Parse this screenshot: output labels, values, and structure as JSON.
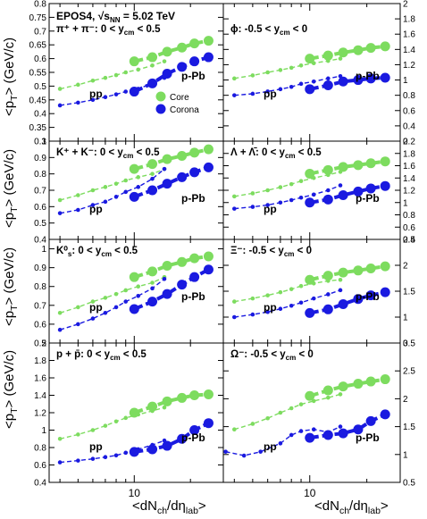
{
  "figure": {
    "ylabel": "<p_T> (GeV/c)",
    "xlabel": "<dN_ch/dη_lab>",
    "legend": {
      "core": "Core",
      "corona": "Corona"
    },
    "colors": {
      "core": "#7ddc5f",
      "corona": "#1a1ae0"
    },
    "header_line1": "EPOS4, √s_NN = 5.02 TeV"
  },
  "chart_data": [
    {
      "type": "line",
      "x_scale": "log",
      "xlim": [
        3.5,
        30
      ],
      "ylim": [
        0.3,
        0.8
      ],
      "yticks": [
        0.3,
        0.35,
        0.4,
        0.45,
        0.5,
        0.55,
        0.6,
        0.65,
        0.7,
        0.75,
        0.8
      ],
      "ytick_side": "left",
      "xtick_labels": [],
      "label": "π⁺ + π⁻: 0 < y_cm < 0.5",
      "label_pp": "pp",
      "label_ppb": "p-Pb",
      "series": [
        {
          "name": "Core",
          "system": "pp",
          "x": [
            4,
            5,
            6,
            7,
            8,
            9,
            10.5,
            12.5,
            14.5
          ],
          "y": [
            0.49,
            0.505,
            0.52,
            0.53,
            0.54,
            0.55,
            0.56,
            0.575,
            0.59
          ]
        },
        {
          "name": "Core",
          "system": "p-Pb",
          "x": [
            10,
            12.5,
            15,
            18,
            21,
            25
          ],
          "y": [
            0.59,
            0.605,
            0.625,
            0.64,
            0.655,
            0.665
          ]
        },
        {
          "name": "Corona",
          "system": "pp",
          "x": [
            4,
            5,
            6,
            7,
            8,
            9,
            10.5,
            12.5,
            14.5
          ],
          "y": [
            0.43,
            0.44,
            0.45,
            0.46,
            0.47,
            0.48,
            0.49,
            0.51,
            0.53
          ]
        },
        {
          "name": "Corona",
          "system": "p-Pb",
          "x": [
            10,
            12.5,
            15,
            18,
            21,
            25
          ],
          "y": [
            0.48,
            0.51,
            0.545,
            0.57,
            0.59,
            0.605
          ]
        }
      ]
    },
    {
      "type": "line",
      "x_scale": "log",
      "xlim": [
        3.5,
        30
      ],
      "ylim": [
        0.2,
        2.0
      ],
      "yticks": [
        0.2,
        0.4,
        0.6,
        0.8,
        1,
        1.2,
        1.4,
        1.6,
        1.8,
        2
      ],
      "ytick_side": "right",
      "xtick_labels": [],
      "label": "ϕ: -0.5 < y_cm < 0",
      "label_pp": "pp",
      "label_ppb": "p-Pb",
      "series": [
        {
          "name": "Core",
          "system": "pp",
          "x": [
            4,
            5,
            6,
            7,
            8,
            9,
            10.5,
            12.5,
            14.5
          ],
          "y": [
            1.02,
            1.06,
            1.1,
            1.13,
            1.16,
            1.19,
            1.22,
            1.25,
            1.28
          ]
        },
        {
          "name": "Core",
          "system": "p-Pb",
          "x": [
            10,
            12.5,
            15,
            18,
            21,
            25
          ],
          "y": [
            1.28,
            1.32,
            1.36,
            1.39,
            1.42,
            1.44
          ]
        },
        {
          "name": "Corona",
          "system": "pp",
          "x": [
            4,
            5,
            6,
            7,
            8,
            9,
            10.5,
            12.5,
            14.5
          ],
          "y": [
            0.8,
            0.82,
            0.85,
            0.88,
            0.91,
            0.95,
            0.98,
            1.02,
            1.05
          ]
        },
        {
          "name": "Corona",
          "system": "p-Pb",
          "x": [
            10,
            12.5,
            15,
            18,
            21,
            25
          ],
          "y": [
            0.88,
            0.93,
            0.98,
            1.0,
            1.02,
            1.03
          ]
        }
      ]
    },
    {
      "type": "line",
      "x_scale": "log",
      "xlim": [
        3.5,
        30
      ],
      "ylim": [
        0.4,
        1.0
      ],
      "yticks": [
        0.4,
        0.5,
        0.6,
        0.7,
        0.8,
        0.9,
        1
      ],
      "ytick_side": "left",
      "xtick_labels": [],
      "label": "K⁺ + K⁻: 0 < y_cm < 0.5",
      "label_pp": "pp",
      "label_ppb": "p-Pb",
      "series": [
        {
          "name": "Core",
          "system": "pp",
          "x": [
            4,
            5,
            6,
            7,
            8,
            9,
            10.5,
            12.5,
            14.5
          ],
          "y": [
            0.64,
            0.67,
            0.7,
            0.72,
            0.74,
            0.76,
            0.78,
            0.8,
            0.83
          ]
        },
        {
          "name": "Core",
          "system": "p-Pb",
          "x": [
            10,
            12.5,
            15,
            18,
            21,
            25
          ],
          "y": [
            0.83,
            0.86,
            0.89,
            0.91,
            0.93,
            0.95
          ]
        },
        {
          "name": "Corona",
          "system": "pp",
          "x": [
            4,
            5,
            6,
            7,
            8,
            9,
            10.5,
            12.5,
            14.5
          ],
          "y": [
            0.56,
            0.58,
            0.61,
            0.63,
            0.66,
            0.69,
            0.72,
            0.77,
            0.83
          ]
        },
        {
          "name": "Corona",
          "system": "p-Pb",
          "x": [
            10,
            12.5,
            15,
            18,
            21,
            25
          ],
          "y": [
            0.66,
            0.7,
            0.74,
            0.78,
            0.81,
            0.84
          ]
        }
      ]
    },
    {
      "type": "line",
      "x_scale": "log",
      "xlim": [
        3.5,
        30
      ],
      "ylim": [
        0.4,
        2.0
      ],
      "yticks": [
        0.4,
        0.6,
        0.8,
        1,
        1.2,
        1.4,
        1.6,
        1.8,
        2
      ],
      "ytick_side": "right",
      "xtick_labels": [],
      "label": "Λ + Λ̄: 0 < y_cm < 0.5",
      "label_pp": "pp",
      "label_ppb": "p-Pb",
      "series": [
        {
          "name": "Core",
          "system": "pp",
          "x": [
            4,
            5,
            6,
            7,
            8,
            9,
            10.5,
            12.5,
            14.5
          ],
          "y": [
            1.1,
            1.15,
            1.2,
            1.25,
            1.3,
            1.35,
            1.4,
            1.45,
            1.5
          ]
        },
        {
          "name": "Core",
          "system": "p-Pb",
          "x": [
            10,
            12.5,
            15,
            18,
            21,
            25
          ],
          "y": [
            1.47,
            1.53,
            1.58,
            1.61,
            1.64,
            1.67
          ]
        },
        {
          "name": "Corona",
          "system": "pp",
          "x": [
            4,
            5,
            6,
            7,
            8,
            9,
            10.5,
            12.5,
            14.5
          ],
          "y": [
            0.9,
            0.93,
            0.96,
            1.0,
            1.04,
            1.08,
            1.13,
            1.2,
            1.28
          ]
        },
        {
          "name": "Corona",
          "system": "p-Pb",
          "x": [
            10,
            12.5,
            15,
            18,
            21,
            25
          ],
          "y": [
            1.0,
            1.05,
            1.12,
            1.18,
            1.23,
            1.27
          ]
        }
      ]
    },
    {
      "type": "line",
      "x_scale": "log",
      "xlim": [
        3.5,
        30
      ],
      "ylim": [
        0.5,
        1.05
      ],
      "yticks": [
        0.5,
        0.6,
        0.7,
        0.8,
        0.9,
        1
      ],
      "ytick_side": "left",
      "xtick_labels": [],
      "label": "K⁰_s: 0 < y_cm < 0.5",
      "label_pp": "pp",
      "label_ppb": "p-Pb",
      "series": [
        {
          "name": "Core",
          "system": "pp",
          "x": [
            4,
            5,
            6,
            7,
            8,
            9,
            10.5,
            12.5,
            14.5
          ],
          "y": [
            0.66,
            0.69,
            0.72,
            0.74,
            0.76,
            0.78,
            0.8,
            0.82,
            0.85
          ]
        },
        {
          "name": "Core",
          "system": "p-Pb",
          "x": [
            10,
            12.5,
            15,
            18,
            21,
            25
          ],
          "y": [
            0.85,
            0.88,
            0.91,
            0.93,
            0.95,
            0.96
          ]
        },
        {
          "name": "Corona",
          "system": "pp",
          "x": [
            4,
            5,
            6,
            7,
            8,
            9,
            10.5,
            12.5,
            14.5
          ],
          "y": [
            0.57,
            0.6,
            0.63,
            0.66,
            0.69,
            0.72,
            0.75,
            0.79,
            0.84
          ]
        },
        {
          "name": "Corona",
          "system": "p-Pb",
          "x": [
            10,
            12.5,
            15,
            18,
            21,
            25
          ],
          "y": [
            0.68,
            0.72,
            0.76,
            0.81,
            0.85,
            0.89
          ]
        }
      ]
    },
    {
      "type": "line",
      "x_scale": "log",
      "xlim": [
        3.5,
        30
      ],
      "ylim": [
        0.5,
        2.5
      ],
      "yticks": [
        0.5,
        1,
        1.5,
        2,
        2.5
      ],
      "ytick_side": "right",
      "xtick_labels": [],
      "label": "Ξ⁻: -0.5 < y_cm < 0",
      "label_pp": "pp",
      "label_ppb": "p-Pb",
      "series": [
        {
          "name": "Core",
          "system": "pp",
          "x": [
            4,
            5,
            6,
            7,
            8,
            9,
            10.5,
            12.5,
            14.5
          ],
          "y": [
            1.3,
            1.36,
            1.42,
            1.48,
            1.54,
            1.6,
            1.65,
            1.7,
            1.72
          ]
        },
        {
          "name": "Core",
          "system": "p-Pb",
          "x": [
            10,
            12.5,
            15,
            18,
            21,
            25
          ],
          "y": [
            1.72,
            1.8,
            1.86,
            1.9,
            1.94,
            1.98
          ]
        },
        {
          "name": "Corona",
          "system": "pp",
          "x": [
            4,
            5,
            6,
            7,
            8,
            9,
            10.5,
            12.5,
            14.5
          ],
          "y": [
            1.0,
            1.05,
            1.1,
            1.16,
            1.22,
            1.28,
            1.36,
            1.44,
            1.52
          ]
        },
        {
          "name": "Corona",
          "system": "p-Pb",
          "x": [
            10,
            12.5,
            15,
            18,
            21,
            25
          ],
          "y": [
            1.08,
            1.15,
            1.25,
            1.35,
            1.42,
            1.48
          ]
        }
      ]
    },
    {
      "type": "line",
      "x_scale": "log",
      "xlim": [
        3.5,
        30
      ],
      "ylim": [
        0.4,
        2.0
      ],
      "yticks": [
        0.4,
        0.6,
        0.8,
        1,
        1.2,
        1.4,
        1.6,
        1.8,
        2
      ],
      "ytick_side": "left",
      "xtick_labels": [
        "10"
      ],
      "label": "p + p̄: 0 < y_cm < 0.5",
      "label_pp": "pp",
      "label_ppb": "p-Pb",
      "series": [
        {
          "name": "Core",
          "system": "pp",
          "x": [
            4,
            5,
            6,
            7,
            8,
            9,
            10.5,
            12.5,
            14.5
          ],
          "y": [
            0.9,
            0.95,
            1.0,
            1.05,
            1.1,
            1.14,
            1.18,
            1.22,
            1.26
          ]
        },
        {
          "name": "Core",
          "system": "p-Pb",
          "x": [
            10,
            12.5,
            15,
            18,
            21,
            25
          ],
          "y": [
            1.2,
            1.27,
            1.33,
            1.37,
            1.4,
            1.41
          ]
        },
        {
          "name": "Corona",
          "system": "pp",
          "x": [
            4,
            5,
            6,
            7,
            8,
            9,
            10.5,
            12.5,
            14.5
          ],
          "y": [
            0.63,
            0.65,
            0.67,
            0.69,
            0.71,
            0.74,
            0.78,
            0.83,
            0.88
          ]
        },
        {
          "name": "Corona",
          "system": "p-Pb",
          "x": [
            10,
            12.5,
            15,
            18,
            21,
            25
          ],
          "y": [
            0.75,
            0.78,
            0.82,
            0.9,
            1.0,
            1.08
          ]
        }
      ]
    },
    {
      "type": "line",
      "x_scale": "log",
      "xlim": [
        3.5,
        30
      ],
      "ylim": [
        0.5,
        3.0
      ],
      "yticks": [
        0.5,
        1,
        1.5,
        2,
        2.5,
        3
      ],
      "ytick_side": "right",
      "xtick_labels": [
        "10"
      ],
      "label": "Ω⁻: -0.5 < y_cm < 0",
      "label_pp": "pp",
      "label_ppb": "p-Pb",
      "series": [
        {
          "name": "Core",
          "system": "pp",
          "x": [
            4,
            5,
            6,
            7,
            8,
            9,
            10.5,
            12.5,
            14.5
          ],
          "y": [
            1.45,
            1.55,
            1.65,
            1.75,
            1.83,
            1.9,
            1.96,
            2.02,
            2.08
          ]
        },
        {
          "name": "Core",
          "system": "p-Pb",
          "x": [
            10,
            12.5,
            15,
            18,
            21,
            25
          ],
          "y": [
            2.05,
            2.15,
            2.22,
            2.27,
            2.31,
            2.35
          ]
        },
        {
          "name": "Corona",
          "system": "pp",
          "x": [
            3.6,
            4.5,
            5.5,
            7,
            8,
            9,
            10.5,
            12.5,
            14.5
          ],
          "y": [
            1.05,
            0.98,
            1.05,
            1.2,
            1.35,
            1.42,
            1.45,
            1.4,
            1.5
          ]
        },
        {
          "name": "Corona",
          "system": "p-Pb",
          "x": [
            10,
            12.5,
            15,
            18,
            21,
            25
          ],
          "y": [
            1.3,
            1.35,
            1.38,
            1.45,
            1.6,
            1.72
          ]
        }
      ]
    }
  ]
}
